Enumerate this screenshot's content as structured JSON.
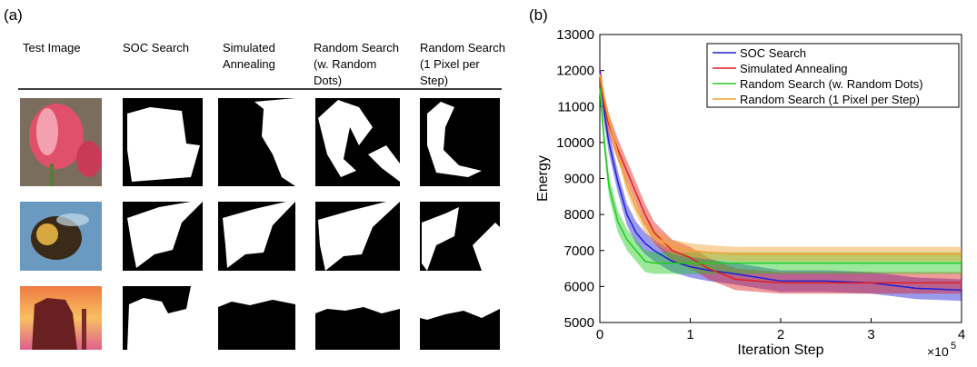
{
  "panel_a": {
    "label": "(a)",
    "columns": [
      [
        "Test Image"
      ],
      [
        "SOC Search"
      ],
      [
        "Simulated",
        "Annealing"
      ],
      [
        "Random Search",
        "(w. Random",
        "Dots)"
      ],
      [
        "Random Search",
        "(1 Pixel per",
        "Step)"
      ]
    ]
  },
  "chart_data": {
    "type": "line",
    "panel_label": "(b)",
    "xlabel": "Iteration Step",
    "ylabel": "Energy",
    "x_multiplier": {
      "base": "×10",
      "exponent": "5"
    },
    "x": [
      0,
      0.05,
      0.1,
      0.2,
      0.3,
      0.4,
      0.5,
      0.6,
      0.8,
      1.0,
      1.2,
      1.5,
      2.0,
      2.5,
      3.0,
      3.5,
      4.0
    ],
    "xlim": [
      0,
      4
    ],
    "xticks": [
      0,
      1,
      2,
      3,
      4
    ],
    "ylim": [
      5000,
      13000
    ],
    "yticks": [
      5000,
      6000,
      7000,
      8000,
      9000,
      10000,
      11000,
      12000,
      13000
    ],
    "legend": "upper right",
    "series": [
      {
        "name": "SOC Search",
        "color": "#1f1fd6",
        "spread": 300,
        "values": [
          12000,
          10800,
          10000,
          8900,
          8000,
          7500,
          7200,
          7000,
          6700,
          6550,
          6450,
          6350,
          6150,
          6150,
          6100,
          5950,
          5900
        ]
      },
      {
        "name": "Simulated Annealing",
        "color": "#e02020",
        "spread": 300,
        "values": [
          11900,
          11000,
          10500,
          9800,
          9200,
          8600,
          8000,
          7500,
          7000,
          6800,
          6500,
          6200,
          6100,
          6100,
          6100,
          6100,
          6100
        ]
      },
      {
        "name": "Random Search (w. Random Dots)",
        "color": "#22cc22",
        "spread": 300,
        "values": [
          11500,
          10000,
          8800,
          7800,
          7300,
          7000,
          6700,
          6650,
          6650,
          6650,
          6650,
          6650,
          6650,
          6650,
          6650,
          6650,
          6650
        ]
      },
      {
        "name": "Random Search (1 Pixel per Step)",
        "color": "#f0a030",
        "spread": 200,
        "values": [
          11900,
          11200,
          10600,
          9700,
          8800,
          8200,
          7700,
          7400,
          7100,
          7000,
          6950,
          6900,
          6900,
          6900,
          6900,
          6900,
          6900
        ]
      }
    ]
  }
}
